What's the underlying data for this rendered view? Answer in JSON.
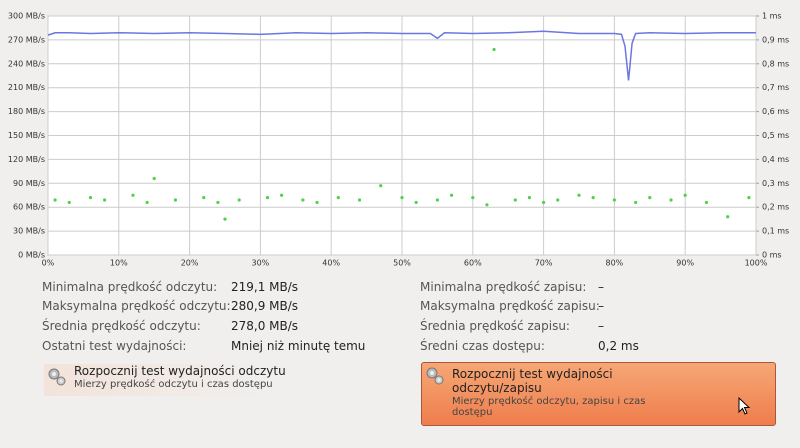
{
  "chart_data": {
    "type": "line",
    "xlim": [
      0,
      100
    ],
    "xticks": [
      {
        "value": 0,
        "label": "0%"
      },
      {
        "value": 10,
        "label": "10%"
      },
      {
        "value": 20,
        "label": "20%"
      },
      {
        "value": 30,
        "label": "30%"
      },
      {
        "value": 40,
        "label": "40%"
      },
      {
        "value": 50,
        "label": "50%"
      },
      {
        "value": 60,
        "label": "60%"
      },
      {
        "value": 70,
        "label": "70%"
      },
      {
        "value": 80,
        "label": "80%"
      },
      {
        "value": 90,
        "label": "90%"
      },
      {
        "value": 100,
        "label": "100%"
      }
    ],
    "ylim": [
      0,
      300
    ],
    "yticks": [
      {
        "value": 0,
        "label": "0 MB/s"
      },
      {
        "value": 30,
        "label": "30 MB/s"
      },
      {
        "value": 60,
        "label": "60 MB/s"
      },
      {
        "value": 90,
        "label": "90 MB/s"
      },
      {
        "value": 120,
        "label": "120 MB/s"
      },
      {
        "value": 150,
        "label": "150 MB/s"
      },
      {
        "value": 180,
        "label": "180 MB/s"
      },
      {
        "value": 210,
        "label": "210 MB/s"
      },
      {
        "value": 240,
        "label": "240 MB/s"
      },
      {
        "value": 270,
        "label": "270 MB/s"
      },
      {
        "value": 300,
        "label": "300 MB/s"
      }
    ],
    "y2lim": [
      0,
      1
    ],
    "y2ticks": [
      {
        "value": 0,
        "label": "0 ms"
      },
      {
        "value": 0.1,
        "label": "0,1 ms"
      },
      {
        "value": 0.2,
        "label": "0,2 ms"
      },
      {
        "value": 0.3,
        "label": "0,3 ms"
      },
      {
        "value": 0.4,
        "label": "0,4 ms"
      },
      {
        "value": 0.5,
        "label": "0,5 ms"
      },
      {
        "value": 0.6,
        "label": "0,6 ms"
      },
      {
        "value": 0.7,
        "label": "0,7 ms"
      },
      {
        "value": 0.8,
        "label": "0,8 ms"
      },
      {
        "value": 0.9,
        "label": "0,9 ms"
      },
      {
        "value": 1,
        "label": "1 ms"
      }
    ],
    "grid": true,
    "series": [
      {
        "type": "line",
        "color": "#6b77e0",
        "x": [
          0,
          1,
          3,
          6,
          10,
          15,
          20,
          25,
          30,
          35,
          40,
          45,
          50,
          54,
          55,
          56,
          60,
          65,
          70,
          75,
          80,
          81,
          81.5,
          82,
          82.5,
          83,
          85,
          90,
          95,
          100
        ],
        "values": [
          276,
          279,
          279,
          278,
          279,
          278,
          279,
          278,
          277,
          279,
          278,
          279,
          278,
          278,
          272,
          279,
          278,
          279,
          280.9,
          278,
          278,
          277,
          262,
          219.1,
          266,
          278,
          279,
          278,
          279,
          279
        ]
      },
      {
        "type": "scatter",
        "axis": "y2",
        "color": "#4fd04f",
        "x": [
          1,
          3,
          6,
          8,
          12,
          14,
          15,
          18,
          22,
          24,
          25,
          27,
          31,
          33,
          36,
          38,
          41,
          44,
          47,
          50,
          52,
          55,
          57,
          60,
          62,
          63,
          66,
          68,
          70,
          72,
          75,
          77,
          80,
          83,
          85,
          88,
          90,
          93,
          96,
          99
        ],
        "values": [
          0.23,
          0.22,
          0.24,
          0.23,
          0.25,
          0.22,
          0.32,
          0.23,
          0.24,
          0.22,
          0.15,
          0.23,
          0.24,
          0.25,
          0.23,
          0.22,
          0.24,
          0.23,
          0.29,
          0.24,
          0.22,
          0.23,
          0.25,
          0.24,
          0.21,
          0.86,
          0.23,
          0.24,
          0.22,
          0.23,
          0.25,
          0.24,
          0.23,
          0.22,
          0.24,
          0.23,
          0.25,
          0.22,
          0.16,
          0.24
        ]
      }
    ]
  },
  "read_stats": [
    {
      "label": "Minimalna prędkość odczytu:",
      "value": "219,1 MB/s"
    },
    {
      "label": "Maksymalna prędkość odczytu:",
      "value": "280,9 MB/s"
    },
    {
      "label": "Średnia prędkość odczytu:",
      "value": "278,0 MB/s"
    },
    {
      "label": "Ostatni test wydajności:",
      "value": "Mniej niż minutę temu"
    }
  ],
  "write_stats": [
    {
      "label": "Minimalna prędkość zapisu:",
      "value": "–"
    },
    {
      "label": "Maksymalna prędkość zapisu:",
      "value": "–"
    },
    {
      "label": "Średnia prędkość zapisu:",
      "value": "–"
    },
    {
      "label": "Średni czas dostępu:",
      "value": "0,2 ms"
    }
  ],
  "buttons": [
    {
      "title": "Rozpocznij test wydajności odczytu",
      "subtitle": "Mierzy prędkość odczytu i czas dostępu"
    },
    {
      "title": "Rozpocznij test wydajności odczytu/zapisu",
      "subtitle": "Mierzy prędkość odczytu, zapisu i czas dostępu"
    }
  ]
}
